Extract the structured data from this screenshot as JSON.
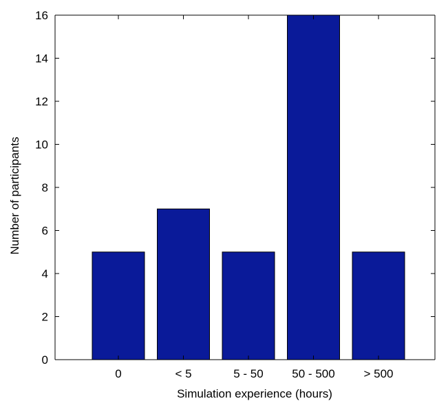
{
  "chart_data": {
    "type": "bar",
    "categories": [
      "0",
      "< 5",
      "5 - 50",
      "50 - 500",
      "> 500"
    ],
    "values": [
      5,
      7,
      5,
      16,
      5
    ],
    "xlabel": "Simulation experience (hours)",
    "ylabel": "Number of participants",
    "ylim": [
      0,
      16
    ],
    "yticks": [
      0,
      2,
      4,
      6,
      8,
      10,
      12,
      14,
      16
    ],
    "grid": false,
    "legend": "none",
    "colors": {
      "bar": "#0a1a99",
      "edge": "#000000",
      "axis": "#000000"
    }
  }
}
